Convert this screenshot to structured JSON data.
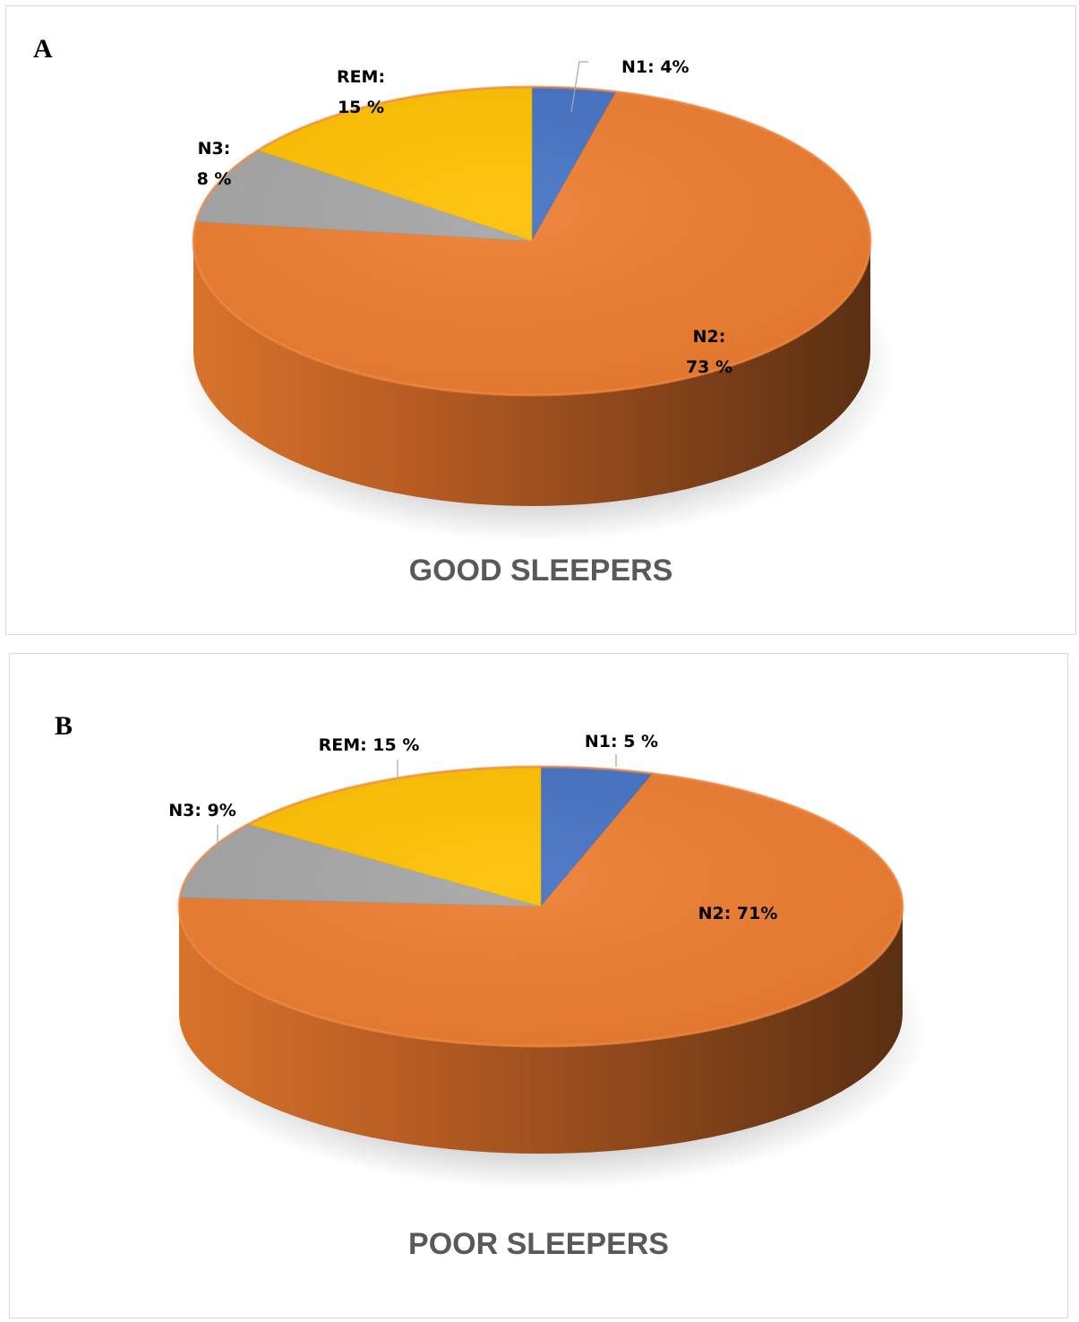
{
  "chart_data": [
    {
      "type": "pie",
      "panel_letter": "A",
      "title": "GOOD SLEEPERS",
      "slices": [
        {
          "name": "N1",
          "value": 4,
          "color": "#4472C4",
          "label_lines": [
            "N1: 4%"
          ]
        },
        {
          "name": "N2",
          "value": 73,
          "color": "#ED7D31",
          "label_lines": [
            "N2:",
            "73 %"
          ]
        },
        {
          "name": "N3",
          "value": 8,
          "color": "#A5A5A5",
          "label_lines": [
            "N3:",
            "8 %"
          ]
        },
        {
          "name": "REM",
          "value": 15,
          "color": "#FFC000",
          "label_lines": [
            "REM:",
            "15 %"
          ]
        }
      ]
    },
    {
      "type": "pie",
      "panel_letter": "B",
      "title": "POOR SLEEPERS",
      "slices": [
        {
          "name": "N1",
          "value": 5,
          "color": "#4472C4",
          "label_lines": [
            "N1:  5 %"
          ]
        },
        {
          "name": "N2",
          "value": 71,
          "color": "#ED7D31",
          "label_lines": [
            "N2: 71%"
          ]
        },
        {
          "name": "N3",
          "value": 9,
          "color": "#A5A5A5",
          "label_lines": [
            "N3: 9%"
          ]
        },
        {
          "name": "REM",
          "value": 15,
          "color": "#FFC000",
          "label_lines": [
            "REM: 15 %"
          ]
        }
      ]
    }
  ]
}
